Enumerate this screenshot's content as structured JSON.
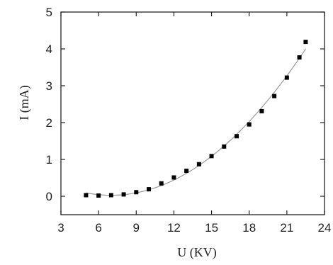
{
  "chart_data": {
    "type": "scatter",
    "xlabel": "U (KV)",
    "ylabel": "I (mA)",
    "xlim": [
      3,
      24
    ],
    "ylim": [
      -0.5,
      5
    ],
    "xticks": [
      3,
      6,
      9,
      12,
      15,
      18,
      21,
      24
    ],
    "yticks": [
      0,
      1,
      2,
      3,
      4,
      5
    ],
    "grid": false,
    "series": [
      {
        "x": [
          5,
          6,
          7,
          8,
          9,
          10,
          11,
          12,
          13,
          14,
          15,
          16,
          17,
          18,
          19,
          20,
          21,
          22,
          22.5
        ],
        "y": [
          0.03,
          0.02,
          0.03,
          0.05,
          0.11,
          0.19,
          0.35,
          0.51,
          0.69,
          0.87,
          1.09,
          1.35,
          1.63,
          1.95,
          2.31,
          2.72,
          3.22,
          3.77,
          4.19
        ]
      }
    ],
    "fit_curve": true,
    "colors": {
      "marker": "#000000",
      "fit_line": "#9a9a9a",
      "axis": "#222222"
    }
  }
}
